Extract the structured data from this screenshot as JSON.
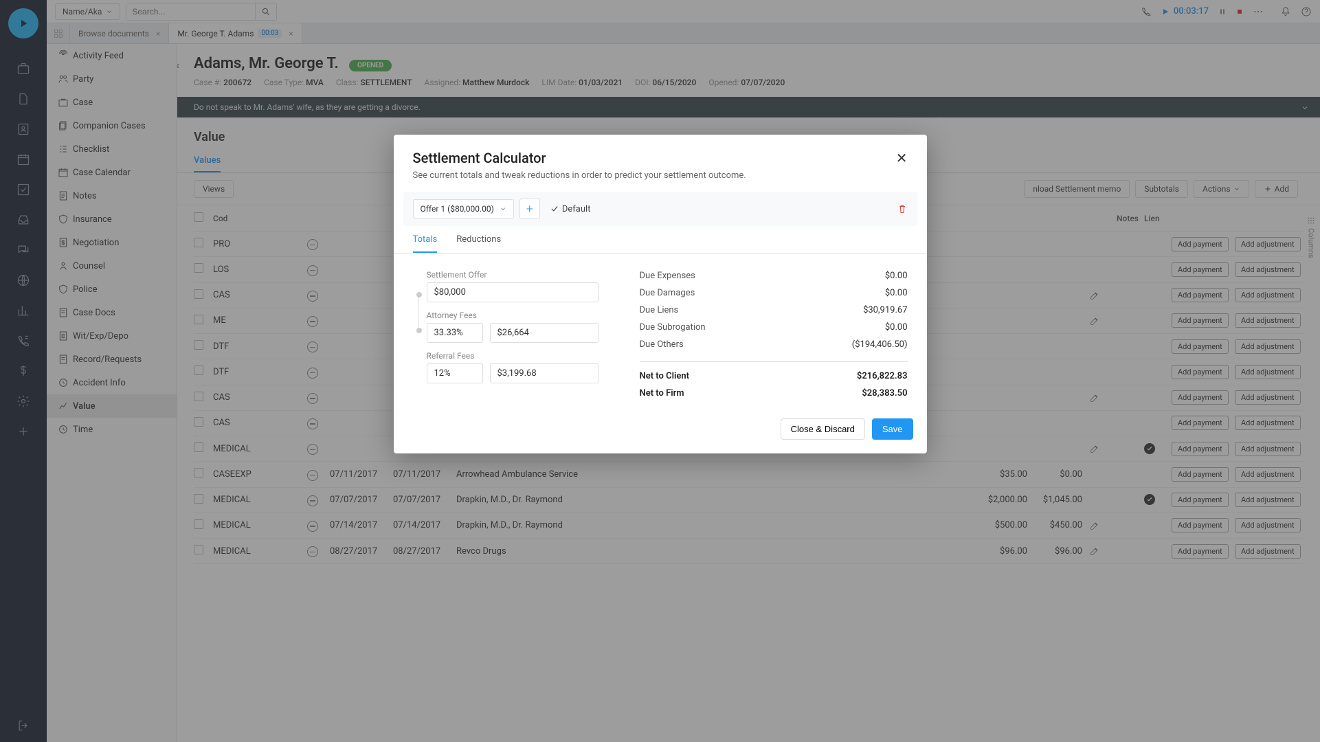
{
  "search": {
    "type_label": "Name/Aka",
    "placeholder": "Search..."
  },
  "timer": "00:03:17",
  "tabs": {
    "browse": "Browse documents",
    "case": "Mr. George T. Adams",
    "case_pill": "00:03"
  },
  "sidenav": [
    "Activity Feed",
    "Party",
    "Case",
    "Companion Cases",
    "Checklist",
    "Case Calendar",
    "Notes",
    "Insurance",
    "Negotiation",
    "Counsel",
    "Police",
    "Case Docs",
    "Wit/Exp/Depo",
    "Record/Requests",
    "Accident Info",
    "Value",
    "Time"
  ],
  "sidenav_active": 15,
  "case": {
    "name": "Adams, Mr. George T.",
    "status": "OPENED",
    "meta": [
      {
        "label": "Case #:",
        "value": "200672"
      },
      {
        "label": "Case Type:",
        "value": "MVA"
      },
      {
        "label": "Class:",
        "value": "SETTLEMENT"
      },
      {
        "label": "Assigned:",
        "value": "Matthew Murdock"
      },
      {
        "label": "LIM Date:",
        "value": "01/03/2021"
      },
      {
        "label": "DOI:",
        "value": "06/15/2020"
      },
      {
        "label": "Opened:",
        "value": "07/07/2020"
      }
    ],
    "warning": "Do not speak to Mr. Adams' wife, as they are getting a divorce."
  },
  "section": {
    "title": "Value",
    "subtabs": [
      "Values"
    ],
    "toolbar_views": "Views",
    "toolbar_download": "nload Settlement memo",
    "toolbar_subtotals": "Subtotals",
    "toolbar_actions": "Actions",
    "toolbar_add": "Add",
    "grid_head": {
      "code": "Cod",
      "notes": "Notes",
      "lien": "Lien"
    },
    "columns_label": "Columns"
  },
  "rows": [
    {
      "code": "PRO",
      "d1": "",
      "d2": "",
      "prov": "",
      "a1": "",
      "a2": "",
      "edit": false,
      "check": false
    },
    {
      "code": "LOS",
      "d1": "",
      "d2": "",
      "prov": "",
      "a1": "",
      "a2": "",
      "edit": false,
      "check": false
    },
    {
      "code": "CAS",
      "d1": "",
      "d2": "",
      "prov": "",
      "a1": "",
      "a2": "",
      "edit": true,
      "check": false
    },
    {
      "code": "ME",
      "d1": "",
      "d2": "",
      "prov": "",
      "a1": "",
      "a2": "",
      "edit": true,
      "check": false
    },
    {
      "code": "DTF",
      "d1": "",
      "d2": "",
      "prov": "",
      "a1": "",
      "a2": "",
      "edit": false,
      "check": false
    },
    {
      "code": "DTF",
      "d1": "",
      "d2": "",
      "prov": "",
      "a1": "",
      "a2": "",
      "edit": false,
      "check": false
    },
    {
      "code": "CAS",
      "d1": "",
      "d2": "",
      "prov": "",
      "a1": "",
      "a2": "",
      "edit": true,
      "check": false
    },
    {
      "code": "CAS",
      "d1": "",
      "d2": "",
      "prov": "",
      "a1": "",
      "a2": "",
      "edit": false,
      "check": false
    },
    {
      "code": "MEDICAL",
      "d1": "",
      "d2": "",
      "prov": "",
      "a1": "",
      "a2": "",
      "edit": true,
      "check": true
    },
    {
      "code": "CASEEXP",
      "d1": "07/11/2017",
      "d2": "07/11/2017",
      "prov": "Arrowhead Ambulance Service",
      "a1": "$35.00",
      "a2": "$0.00",
      "edit": false,
      "check": false
    },
    {
      "code": "MEDICAL",
      "d1": "07/07/2017",
      "d2": "07/07/2017",
      "prov": "Drapkin, M.D., Dr. Raymond",
      "a1": "$2,000.00",
      "a2": "$1,045.00",
      "edit": false,
      "check": true
    },
    {
      "code": "MEDICAL",
      "d1": "07/14/2017",
      "d2": "07/14/2017",
      "prov": "Drapkin, M.D., Dr. Raymond",
      "a1": "$500.00",
      "a2": "$450.00",
      "edit": true,
      "check": false
    },
    {
      "code": "MEDICAL",
      "d1": "08/27/2017",
      "d2": "08/27/2017",
      "prov": "Revco Drugs",
      "a1": "$96.00",
      "a2": "$96.00",
      "edit": true,
      "check": false
    }
  ],
  "row_btns": {
    "pay": "Add payment",
    "adj": "Add adjustment"
  },
  "modal": {
    "title": "Settlement Calculator",
    "subtitle": "See current totals and tweak reductions in order to predict your settlement outcome.",
    "offer_label": "Offer 1 ($80,000.00)",
    "default_label": "Default",
    "tabs": [
      "Totals",
      "Reductions"
    ],
    "fields": {
      "settlement_lbl": "Settlement Offer",
      "settlement_val": "$80,000",
      "attorney_lbl": "Attorney Fees",
      "attorney_pct": "33.33%",
      "attorney_amt": "$26,664",
      "referral_lbl": "Referral Fees",
      "referral_pct": "12%",
      "referral_amt": "$3,199.68"
    },
    "dues": [
      {
        "label": "Due Expenses",
        "value": "$0.00"
      },
      {
        "label": "Due Damages",
        "value": "$0.00"
      },
      {
        "label": "Due Liens",
        "value": "$30,919.67"
      },
      {
        "label": "Due Subrogation",
        "value": "$0.00"
      },
      {
        "label": "Due Others",
        "value": "($194,406.50)"
      }
    ],
    "nets": [
      {
        "label": "Net to Client",
        "value": "$216,822.83"
      },
      {
        "label": "Net to Firm",
        "value": "$28,383.50"
      }
    ],
    "btn_discard": "Close & Discard",
    "btn_save": "Save"
  }
}
